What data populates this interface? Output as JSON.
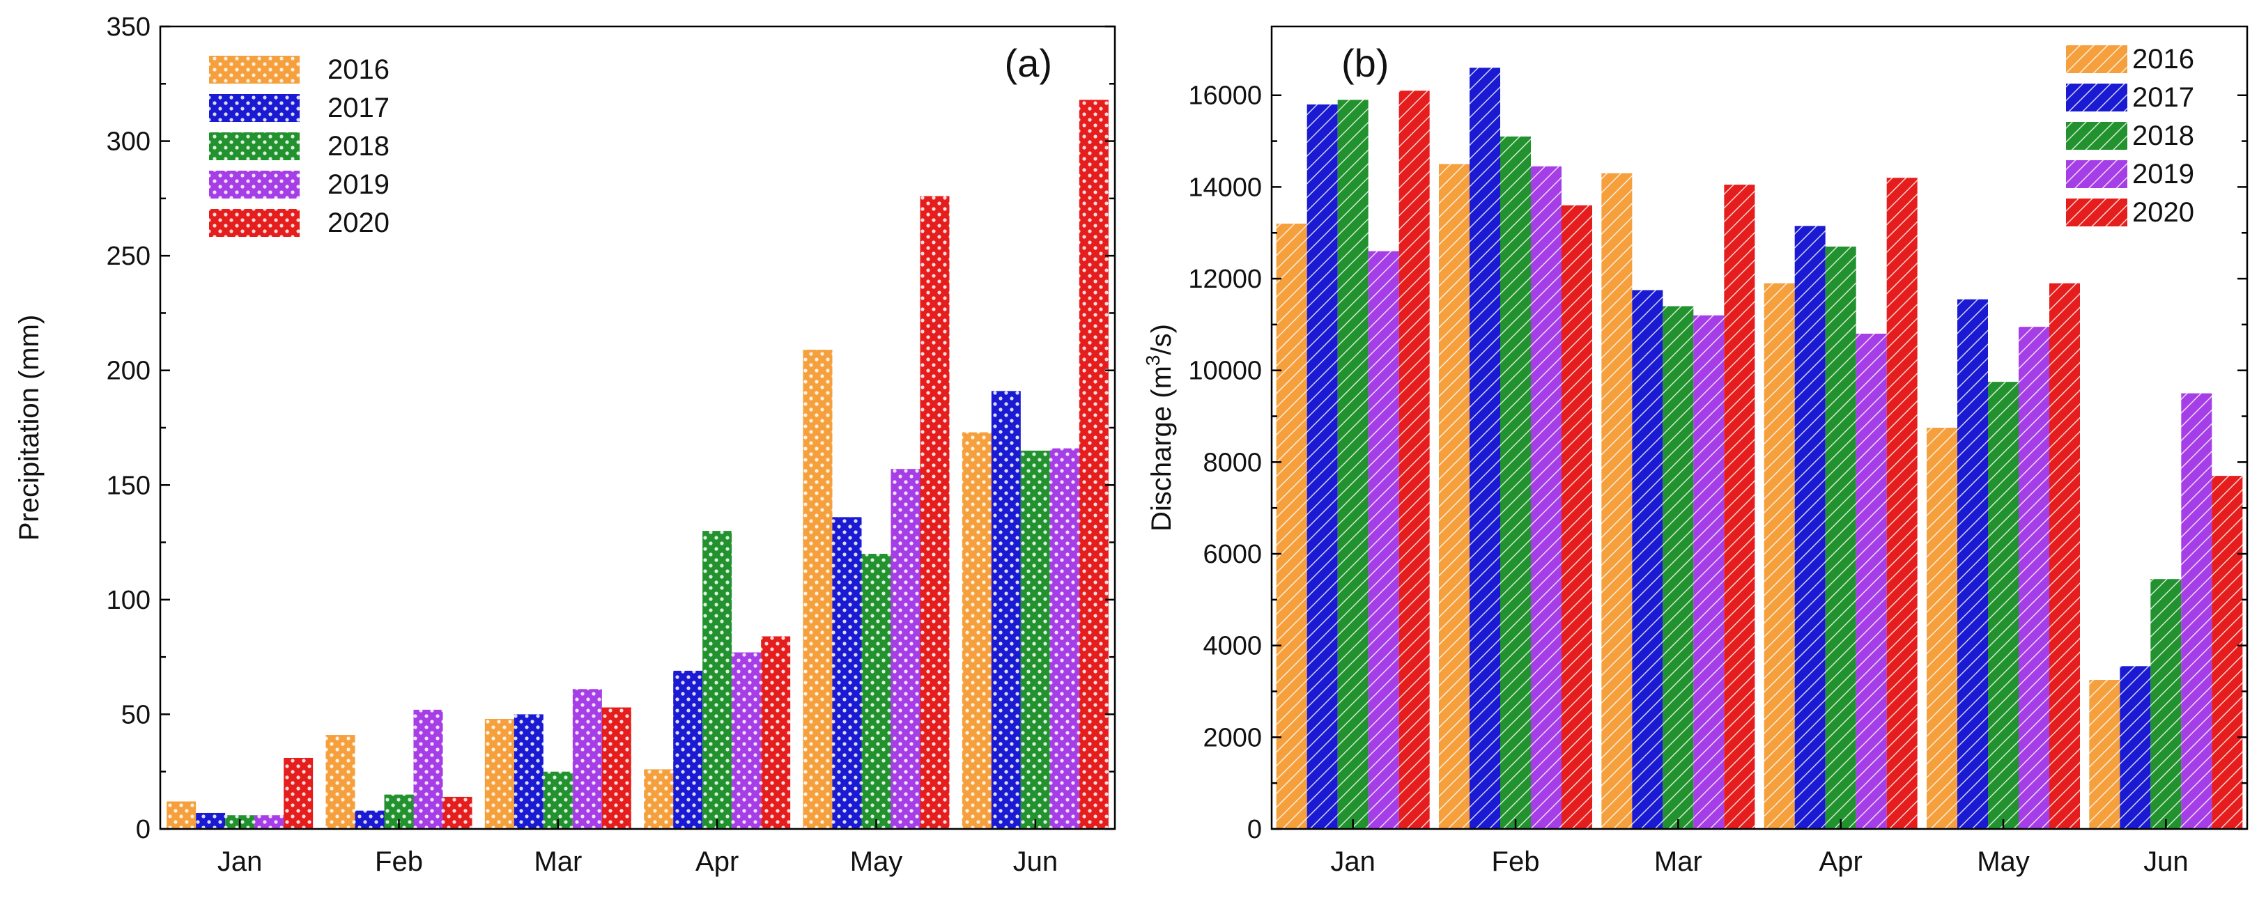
{
  "colors": {
    "2016": "#f5a03c",
    "2017": "#1a1ad2",
    "2018": "#21922e",
    "2019": "#a53ee6",
    "2020": "#e51d1d"
  },
  "chart_data": [
    {
      "type": "bar",
      "panel_label": "(a)",
      "categories": [
        "Jan",
        "Feb",
        "Mar",
        "Apr",
        "May",
        "Jun"
      ],
      "series": [
        {
          "name": "2016",
          "values": [
            12,
            41,
            48,
            26,
            209,
            173
          ]
        },
        {
          "name": "2017",
          "values": [
            7,
            8,
            50,
            69,
            136,
            191
          ]
        },
        {
          "name": "2018",
          "values": [
            6,
            15,
            25,
            130,
            120,
            165
          ]
        },
        {
          "name": "2019",
          "values": [
            6,
            52,
            61,
            77,
            157,
            166
          ]
        },
        {
          "name": "2020",
          "values": [
            31,
            14,
            53,
            84,
            276,
            318
          ]
        }
      ],
      "ylabel": "Precipitation (mm)",
      "xlabel": "",
      "ylim": [
        0,
        350
      ],
      "yticks": [
        0,
        50,
        100,
        150,
        200,
        250,
        300,
        350
      ],
      "legend_placement": "top-left",
      "pattern": "dots"
    },
    {
      "type": "bar",
      "panel_label": "(b)",
      "categories": [
        "Jan",
        "Feb",
        "Mar",
        "Apr",
        "May",
        "Jun"
      ],
      "series": [
        {
          "name": "2016",
          "values": [
            13200,
            14500,
            14300,
            11900,
            8750,
            3250
          ]
        },
        {
          "name": "2017",
          "values": [
            15800,
            16600,
            11750,
            13150,
            11550,
            3550
          ]
        },
        {
          "name": "2018",
          "values": [
            15900,
            15100,
            11400,
            12700,
            9750,
            5450
          ]
        },
        {
          "name": "2019",
          "values": [
            12600,
            14450,
            11200,
            10800,
            10950,
            9500
          ]
        },
        {
          "name": "2020",
          "values": [
            16100,
            13600,
            14050,
            14200,
            11900,
            7700
          ]
        }
      ],
      "ylabel_main": "Discharge (m",
      "ylabel_sup": "3",
      "ylabel_tail": "/s)",
      "xlabel": "",
      "ylim": [
        0,
        17500
      ],
      "yticks": [
        0,
        2000,
        4000,
        6000,
        8000,
        10000,
        12000,
        14000,
        16000
      ],
      "legend_placement": "top-right",
      "pattern": "hatch"
    }
  ]
}
